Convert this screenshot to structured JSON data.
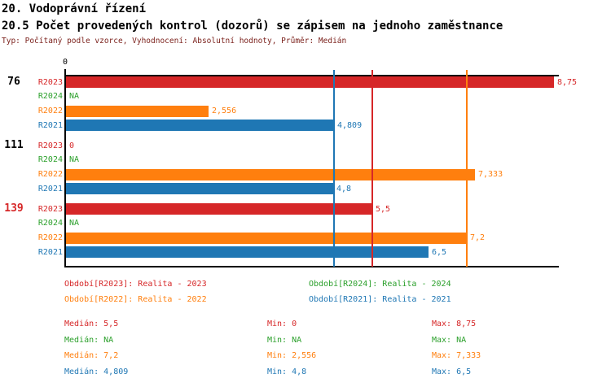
{
  "colors": {
    "R2023": "#d62728",
    "R2024": "#2ca02c",
    "R2022": "#ff7f0e",
    "R2021": "#1f77b4",
    "black": "#000000",
    "meta": "#7a1f1a"
  },
  "header": {
    "title": "20. Vodoprávní řízení",
    "subtitle": "20.5 Počet provedených kontrol (dozorů) se zápisem na jednoho zaměstnance",
    "meta": "Typ: Počítaný podle vzorce, Vyhodnocení: Absolutní hodnoty, Průměr: Medián"
  },
  "chart_data": {
    "type": "bar",
    "orientation": "horizontal",
    "title": "20.5 Počet provedených kontrol (dozorů) se zápisem na jednoho zaměstnance",
    "xlabel": "",
    "ylabel": "",
    "axis": {
      "zero_label": "0",
      "min": 0,
      "max": 8.85,
      "grid": "median-lines-only"
    },
    "series_order": [
      "R2023",
      "R2024",
      "R2022",
      "R2021"
    ],
    "groups": [
      {
        "number": "76",
        "number_color": "black",
        "rows": [
          {
            "series": "R2023",
            "value": 8.75,
            "label": "8,75"
          },
          {
            "series": "R2024",
            "value": null,
            "label": "NA"
          },
          {
            "series": "R2022",
            "value": 2.556,
            "label": "2,556"
          },
          {
            "series": "R2021",
            "value": 4.809,
            "label": "4,809"
          }
        ]
      },
      {
        "number": "111",
        "number_color": "black",
        "rows": [
          {
            "series": "R2023",
            "value": 0,
            "label": "0"
          },
          {
            "series": "R2024",
            "value": null,
            "label": "NA"
          },
          {
            "series": "R2022",
            "value": 7.333,
            "label": "7,333"
          },
          {
            "series": "R2021",
            "value": 4.8,
            "label": "4,8"
          }
        ]
      },
      {
        "number": "139",
        "number_color": "R2023",
        "rows": [
          {
            "series": "R2023",
            "value": 5.5,
            "label": "5,5"
          },
          {
            "series": "R2024",
            "value": null,
            "label": "NA"
          },
          {
            "series": "R2022",
            "value": 7.2,
            "label": "7,2"
          },
          {
            "series": "R2021",
            "value": 6.5,
            "label": "6,5"
          }
        ]
      }
    ],
    "median_lines": [
      {
        "series": "R2021",
        "value": 4.809
      },
      {
        "series": "R2023",
        "value": 5.5
      },
      {
        "series": "R2022",
        "value": 7.2
      }
    ]
  },
  "legend": {
    "items": [
      {
        "series": "R2023",
        "text": "Období[R2023]: Realita - 2023"
      },
      {
        "series": "R2024",
        "text": "Období[R2024]: Realita - 2024"
      },
      {
        "series": "R2022",
        "text": "Období[R2022]: Realita - 2022"
      },
      {
        "series": "R2021",
        "text": "Období[R2021]: Realita - 2021"
      }
    ]
  },
  "stats": {
    "rows": [
      {
        "series": "R2023",
        "median": "Medián: 5,5",
        "min": "Min: 0",
        "max": "Max: 8,75"
      },
      {
        "series": "R2024",
        "median": "Medián: NA",
        "min": "Min: NA",
        "max": "Max: NA"
      },
      {
        "series": "R2022",
        "median": "Medián: 7,2",
        "min": "Min: 2,556",
        "max": "Max: 7,333"
      },
      {
        "series": "R2021",
        "median": "Medián: 4,809",
        "min": "Min: 4,8",
        "max": "Max: 6,5"
      }
    ]
  }
}
